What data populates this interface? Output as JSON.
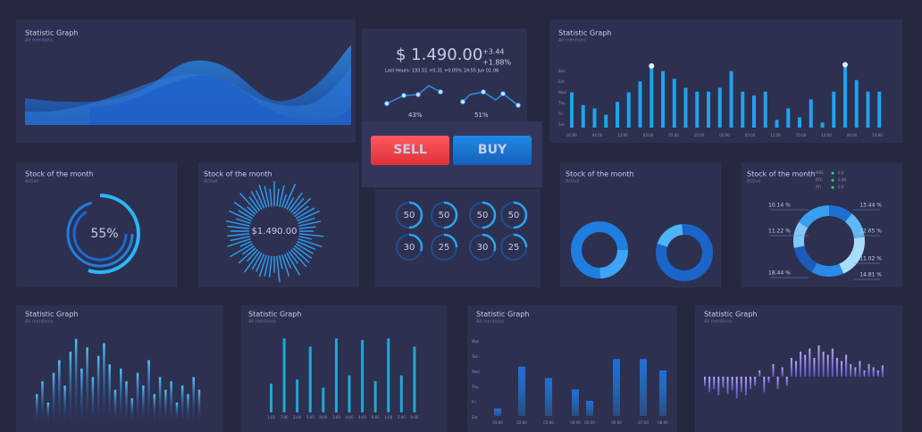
{
  "area_panel": {
    "title": "Statistic Graph",
    "subtitle": "All mentions"
  },
  "price_panel": {
    "price": "$ 1.490.00",
    "change": "+3.44",
    "change_pct": "+1.88%",
    "last_hours": "Last Hours: 193.51 +0.31 +0.05% 19:55 Jun 01.06",
    "left_pct": "43%",
    "right_pct": "51%"
  },
  "buttons": {
    "sell": "SELL",
    "buy": "BUY"
  },
  "top_bars": {
    "title": "Statistic Graph",
    "subtitle": "All mentions",
    "values": [
      55,
      35,
      30,
      20,
      40,
      55,
      72,
      96,
      88,
      76,
      62,
      56,
      56,
      62,
      88,
      56,
      50,
      56,
      12,
      30,
      16,
      44,
      8,
      56,
      98,
      74,
      56,
      56
    ],
    "ylabels": [
      "Sun",
      "Sat",
      "Wed",
      "Thu",
      "Fri",
      "Sat"
    ],
    "xlabels": [
      "01:00",
      "04:00",
      "13:00",
      "03:00",
      "05:00",
      "15:00",
      "02:00",
      "05:00",
      "11:00",
      "15:00",
      "13:00",
      "06:00",
      "23:00"
    ]
  },
  "gauge": {
    "title": "Stock of the month",
    "subtitle": "Active",
    "value": 55,
    "value_label": "55%"
  },
  "radial": {
    "title": "Stock of the month",
    "subtitle": "Active",
    "label": "$1.490.00"
  },
  "dials": {
    "values": [
      50,
      50,
      50,
      50,
      30,
      25,
      30,
      25
    ]
  },
  "donuts": {
    "title": "Stock of the month",
    "subtitle": "Active"
  },
  "pct_donut": {
    "title": "Stock of the month",
    "subtitle": "Active",
    "values": [
      10.14,
      11.22,
      18.44,
      13.44,
      12.65,
      11.02,
      14.81
    ],
    "value_labels": [
      "10.14 %",
      "11.22 %",
      "18.44 %",
      "13.44 %",
      "12.65 %",
      "11.02 %",
      "14.81 %"
    ],
    "legend": [
      {
        "name": "MBS",
        "value": "0.4"
      },
      {
        "name": "PTC",
        "value": "0.08"
      },
      {
        "name": "ATI",
        "value": "0.0"
      }
    ]
  },
  "bottom": [
    {
      "title": "Statistic Graph",
      "subtitle": "All mentions",
      "values": [
        30,
        45,
        20,
        55,
        70,
        40,
        80,
        95,
        60,
        85,
        50,
        75,
        90,
        65,
        35,
        60,
        45,
        25,
        55,
        40,
        70,
        30,
        50,
        35,
        45,
        20,
        40,
        30,
        50,
        35
      ]
    },
    {
      "title": "Statistic Graph",
      "subtitle": "All mentions",
      "values": [
        35,
        90,
        40,
        80,
        30,
        90,
        45,
        88,
        38,
        90,
        45,
        80
      ],
      "xlabels": [
        "1:00",
        "7:00",
        "2:00",
        "5:00",
        "8:00",
        "3:00",
        "9:00",
        "4:00",
        "6:00",
        "1:00",
        "5:00",
        "9:00"
      ]
    },
    {
      "title": "Statistic Graph",
      "subtitle": "All mentions",
      "values": [
        10,
        65,
        50,
        35,
        20,
        75,
        75,
        60
      ],
      "ylabels": [
        "Mon",
        "Tue",
        "Wed",
        "Thu",
        "Fri",
        "Sat"
      ],
      "xlabels": [
        "01:00",
        "02:00",
        "03:00",
        "04:00",
        "05:00",
        "06:00",
        "07:00",
        "08:00"
      ]
    },
    {
      "title": "Statistic Graph",
      "subtitle": "All mentions",
      "values": [
        -15,
        -25,
        -20,
        -30,
        -18,
        -28,
        -22,
        -35,
        -25,
        -30,
        -20,
        -15,
        10,
        -25,
        -10,
        20,
        -20,
        15,
        -15,
        30,
        25,
        40,
        35,
        45,
        30,
        50,
        40,
        35,
        45,
        30,
        25,
        35,
        20,
        15,
        25,
        10,
        20,
        15,
        10,
        18
      ]
    }
  ]
}
